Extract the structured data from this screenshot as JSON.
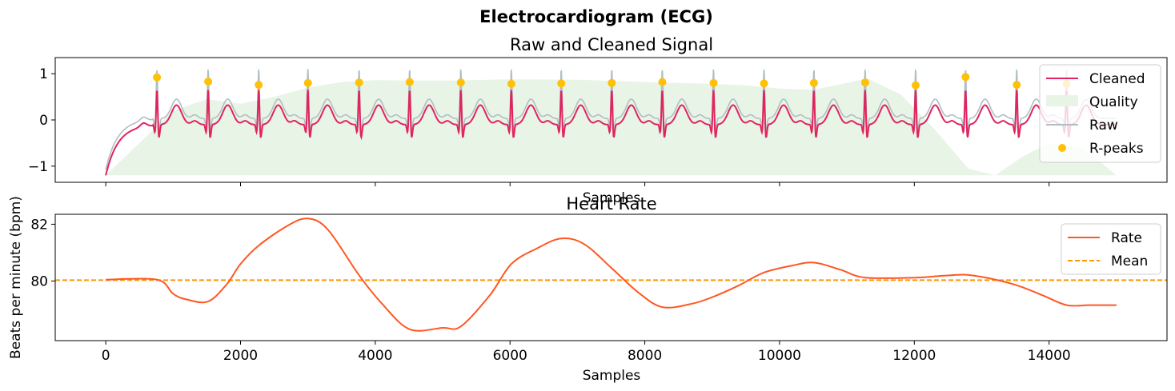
{
  "figure": {
    "suptitle": "Electrocardiogram (ECG)"
  },
  "colors": {
    "cleaned": "#E0245E",
    "raw": "#B0BEC5",
    "quality": "#E8F4E6",
    "rpeaks": "#FFC107",
    "rate": "#FF5722",
    "mean": "#FF9800"
  },
  "chart_data": [
    {
      "type": "line",
      "title": "Raw and Cleaned Signal",
      "xlabel": "Samples",
      "ylabel": "",
      "xlim": [
        -750,
        15750
      ],
      "ylim": [
        -1.35,
        1.35
      ],
      "yticks": [
        -1,
        0,
        1
      ],
      "ytick_labels": [
        "−1",
        "0",
        "1"
      ],
      "xticks": [
        0,
        2000,
        4000,
        6000,
        8000,
        10000,
        12000,
        14000
      ],
      "show_xtick_labels": false,
      "grid": false,
      "legend_position": "top-right",
      "legend": [
        "Cleaned",
        "Quality",
        "Raw",
        "R-peaks"
      ],
      "series": [
        {
          "name": "Cleaned",
          "kind": "ecg",
          "baseline": -0.1,
          "peak_height": 0.8
        },
        {
          "name": "Raw",
          "kind": "ecg",
          "baseline": 0.03,
          "peak_height": 1.12
        }
      ],
      "quality_band": {
        "name": "Quality",
        "lower": -1.2,
        "x": [
          0,
          500,
          1000,
          1500,
          2000,
          2500,
          3000,
          3500,
          4000,
          5000,
          6000,
          7000,
          8000,
          9000,
          9500,
          10000,
          10500,
          11000,
          11300,
          11800,
          12300,
          12800,
          13200,
          13600,
          14000,
          14500,
          15000
        ],
        "upper": [
          -1.2,
          -0.5,
          0.2,
          0.45,
          0.35,
          0.5,
          0.7,
          0.82,
          0.86,
          0.85,
          0.88,
          0.87,
          0.82,
          0.78,
          0.75,
          0.68,
          0.65,
          0.8,
          0.9,
          0.55,
          -0.2,
          -1.05,
          -1.2,
          -0.8,
          -0.5,
          -0.6,
          -1.2
        ]
      },
      "rpeaks": {
        "name": "R-peaks",
        "x": [
          760,
          1520,
          2270,
          3000,
          3760,
          4510,
          5270,
          6020,
          6760,
          7510,
          8260,
          9020,
          9770,
          10510,
          11270,
          12020,
          12760,
          13520,
          14260
        ],
        "y": [
          0.92,
          0.83,
          0.76,
          0.8,
          0.81,
          0.82,
          0.81,
          0.78,
          0.79,
          0.8,
          0.82,
          0.8,
          0.79,
          0.8,
          0.81,
          0.75,
          0.93,
          0.76,
          0.78
        ]
      }
    },
    {
      "type": "line",
      "title": "Heart Rate",
      "xlabel": "Samples",
      "ylabel": "Beats per minute (bpm)",
      "xlim": [
        -750,
        15750
      ],
      "ylim": [
        77.9,
        82.35
      ],
      "yticks": [
        80,
        82
      ],
      "xticks": [
        0,
        2000,
        4000,
        6000,
        8000,
        10000,
        12000,
        14000
      ],
      "grid": false,
      "legend_position": "top-right",
      "legend": [
        "Rate",
        "Mean"
      ],
      "series": [
        {
          "name": "Rate",
          "x": [
            0,
            760,
            1000,
            1200,
            1520,
            1800,
            2000,
            2270,
            2700,
            3000,
            3300,
            3760,
            4100,
            4510,
            5000,
            5270,
            5700,
            6020,
            6400,
            6760,
            7100,
            7510,
            7900,
            8260,
            8700,
            9020,
            9400,
            9770,
            10200,
            10510,
            10900,
            11270,
            12020,
            12400,
            12760,
            13100,
            13520,
            13900,
            14260,
            14600,
            15000
          ],
          "y": [
            80.05,
            80.05,
            79.55,
            79.35,
            79.28,
            79.9,
            80.6,
            81.25,
            81.95,
            82.2,
            81.8,
            80.2,
            79.2,
            78.3,
            78.35,
            78.4,
            79.5,
            80.6,
            81.15,
            81.5,
            81.3,
            80.45,
            79.6,
            79.08,
            79.2,
            79.45,
            79.85,
            80.3,
            80.55,
            80.65,
            80.4,
            80.12,
            80.12,
            80.18,
            80.22,
            80.1,
            79.85,
            79.5,
            79.15,
            79.15,
            79.15
          ]
        },
        {
          "name": "Mean",
          "constant": 80.03,
          "style": "dashed"
        }
      ]
    }
  ]
}
